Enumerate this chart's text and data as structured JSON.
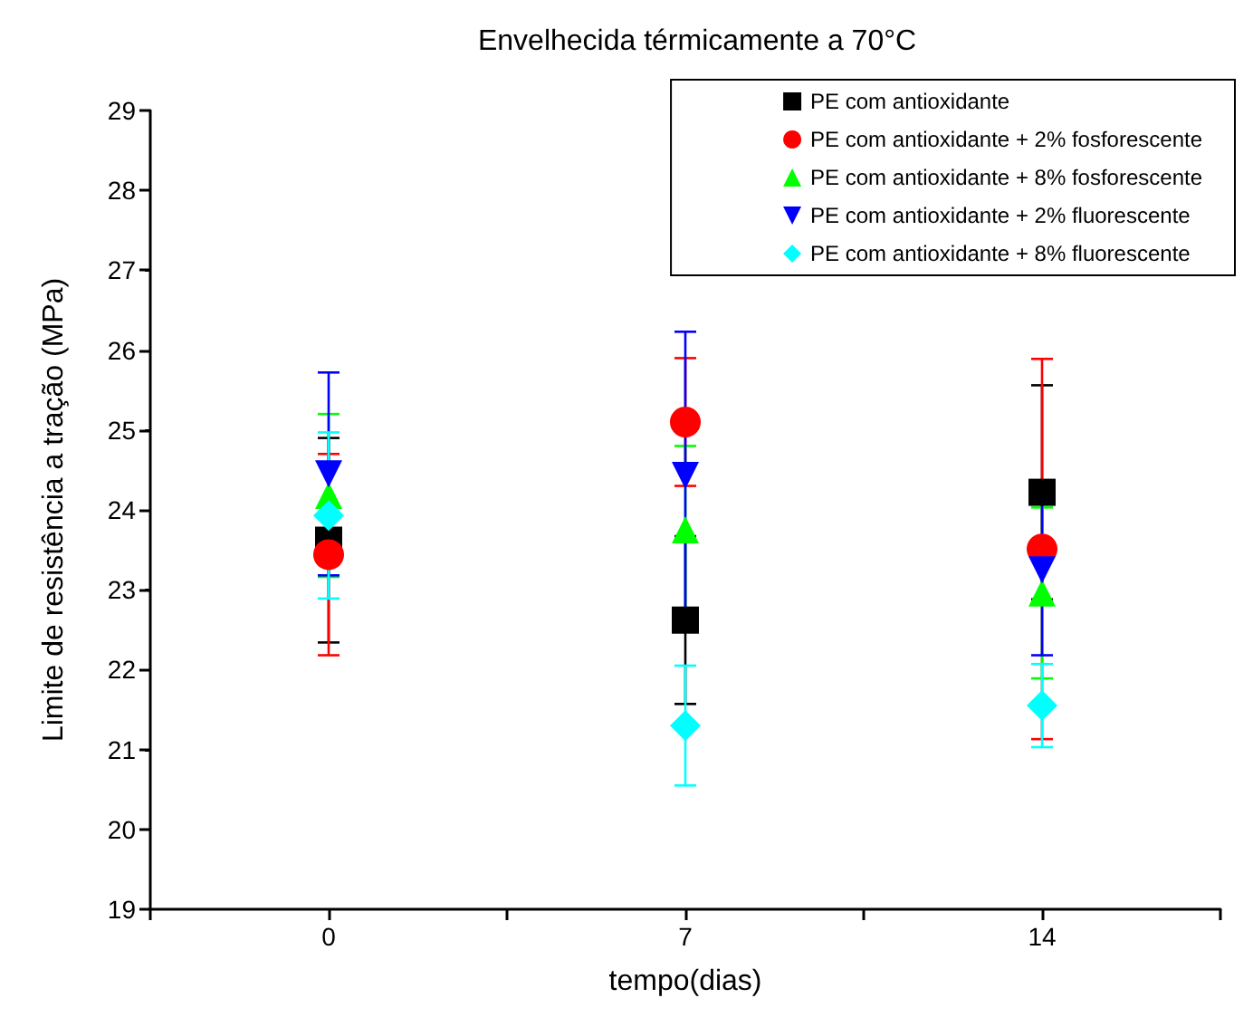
{
  "chart_data": {
    "type": "scatter",
    "title": "Envelhecida térmicamente a 70°C",
    "xlabel": "tempo(dias)",
    "ylabel": "Limite de resistência a tração (MPa)",
    "x": [
      0,
      7,
      14
    ],
    "series": [
      {
        "name": "PE com antioxidante",
        "color": "#000000",
        "marker": "square",
        "values": [
          23.62,
          22.62,
          24.22
        ],
        "errors": [
          1.28,
          1.05,
          1.34
        ]
      },
      {
        "name": "PE com antioxidante + 2% fosforescente",
        "color": "#ff0000",
        "marker": "circle",
        "values": [
          23.44,
          25.1,
          23.51
        ],
        "errors": [
          1.26,
          0.8,
          2.38
        ]
      },
      {
        "name": "PE com antioxidante + 8% fosforescente",
        "color": "#00ff00",
        "marker": "triangle",
        "values": [
          24.18,
          23.75,
          22.96
        ],
        "errors": [
          1.02,
          1.05,
          1.07
        ]
      },
      {
        "name": "PE com antioxidante + 2% fluorescente",
        "color": "#0000ff",
        "marker": "triangle-down",
        "values": [
          24.45,
          24.43,
          23.25
        ],
        "errors": [
          1.27,
          1.8,
          1.07
        ]
      },
      {
        "name": "PE com antioxidante + 8% fluorescente",
        "color": "#00ffff",
        "marker": "diamond",
        "values": [
          23.93,
          21.3,
          21.55
        ],
        "errors": [
          1.04,
          0.75,
          0.52
        ]
      }
    ],
    "xlim": [
      -3.5,
      17.5
    ],
    "xticks": [
      {
        "value": -3.5,
        "label": null
      },
      0,
      {
        "value": 3.5,
        "label": null
      },
      7,
      {
        "value": 10.5,
        "label": null
      },
      14,
      {
        "value": 17.5,
        "label": null
      }
    ],
    "ylim": [
      19,
      29
    ],
    "yticks": [
      19,
      20,
      21,
      22,
      23,
      24,
      25,
      26,
      27,
      28,
      29
    ],
    "grid": false,
    "legend": "top right"
  }
}
